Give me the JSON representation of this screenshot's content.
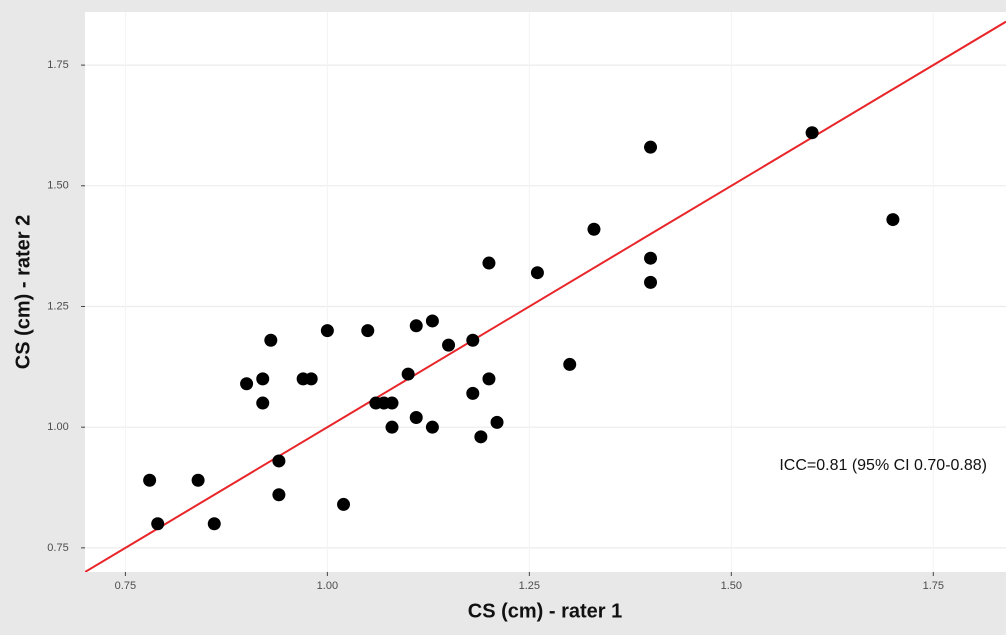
{
  "chart_data": {
    "type": "scatter",
    "x_label": "CS (cm) - rater 1",
    "y_label": "CS (cm) - rater 2",
    "annotation": "ICC=0.81 (95% CI 0.70-0.88)",
    "x": [
      0.78,
      0.79,
      0.84,
      0.86,
      0.9,
      0.92,
      0.92,
      0.93,
      0.94,
      0.94,
      0.97,
      0.98,
      1.0,
      1.02,
      1.05,
      1.06,
      1.07,
      1.08,
      1.08,
      1.1,
      1.11,
      1.11,
      1.13,
      1.13,
      1.15,
      1.18,
      1.18,
      1.19,
      1.2,
      1.2,
      1.21,
      1.26,
      1.3,
      1.33,
      1.4,
      1.4,
      1.4,
      1.6,
      1.7
    ],
    "values": [
      0.89,
      0.8,
      0.89,
      0.8,
      1.09,
      1.1,
      1.05,
      1.18,
      0.93,
      0.86,
      1.1,
      1.1,
      1.2,
      0.84,
      1.2,
      1.05,
      1.05,
      1.05,
      1.0,
      1.11,
      1.21,
      1.02,
      1.22,
      1.0,
      1.17,
      1.18,
      1.07,
      0.98,
      1.34,
      1.1,
      1.01,
      1.32,
      1.13,
      1.41,
      1.58,
      1.35,
      1.3,
      1.61,
      1.43
    ],
    "color": "#000000",
    "reference_line": {
      "slope": 1,
      "intercept": 0,
      "color": "#e8262a"
    },
    "xlim": [
      0.7,
      1.84
    ],
    "ylim": [
      0.7,
      1.86
    ],
    "xticks": [
      {
        "value": 0.75,
        "label": "0.75"
      },
      {
        "value": 1.0,
        "label": "1.00"
      },
      {
        "value": 1.25,
        "label": "1.25"
      },
      {
        "value": 1.5,
        "label": "1.50"
      },
      {
        "value": 1.75,
        "label": "1.75"
      }
    ],
    "yticks": [
      {
        "value": 0.75,
        "label": "0.75"
      },
      {
        "value": 1.0,
        "label": "1.00"
      },
      {
        "value": 1.25,
        "label": "1.25"
      },
      {
        "value": 1.5,
        "label": "1.50"
      },
      {
        "value": 1.75,
        "label": "1.75"
      }
    ],
    "grid": true
  }
}
